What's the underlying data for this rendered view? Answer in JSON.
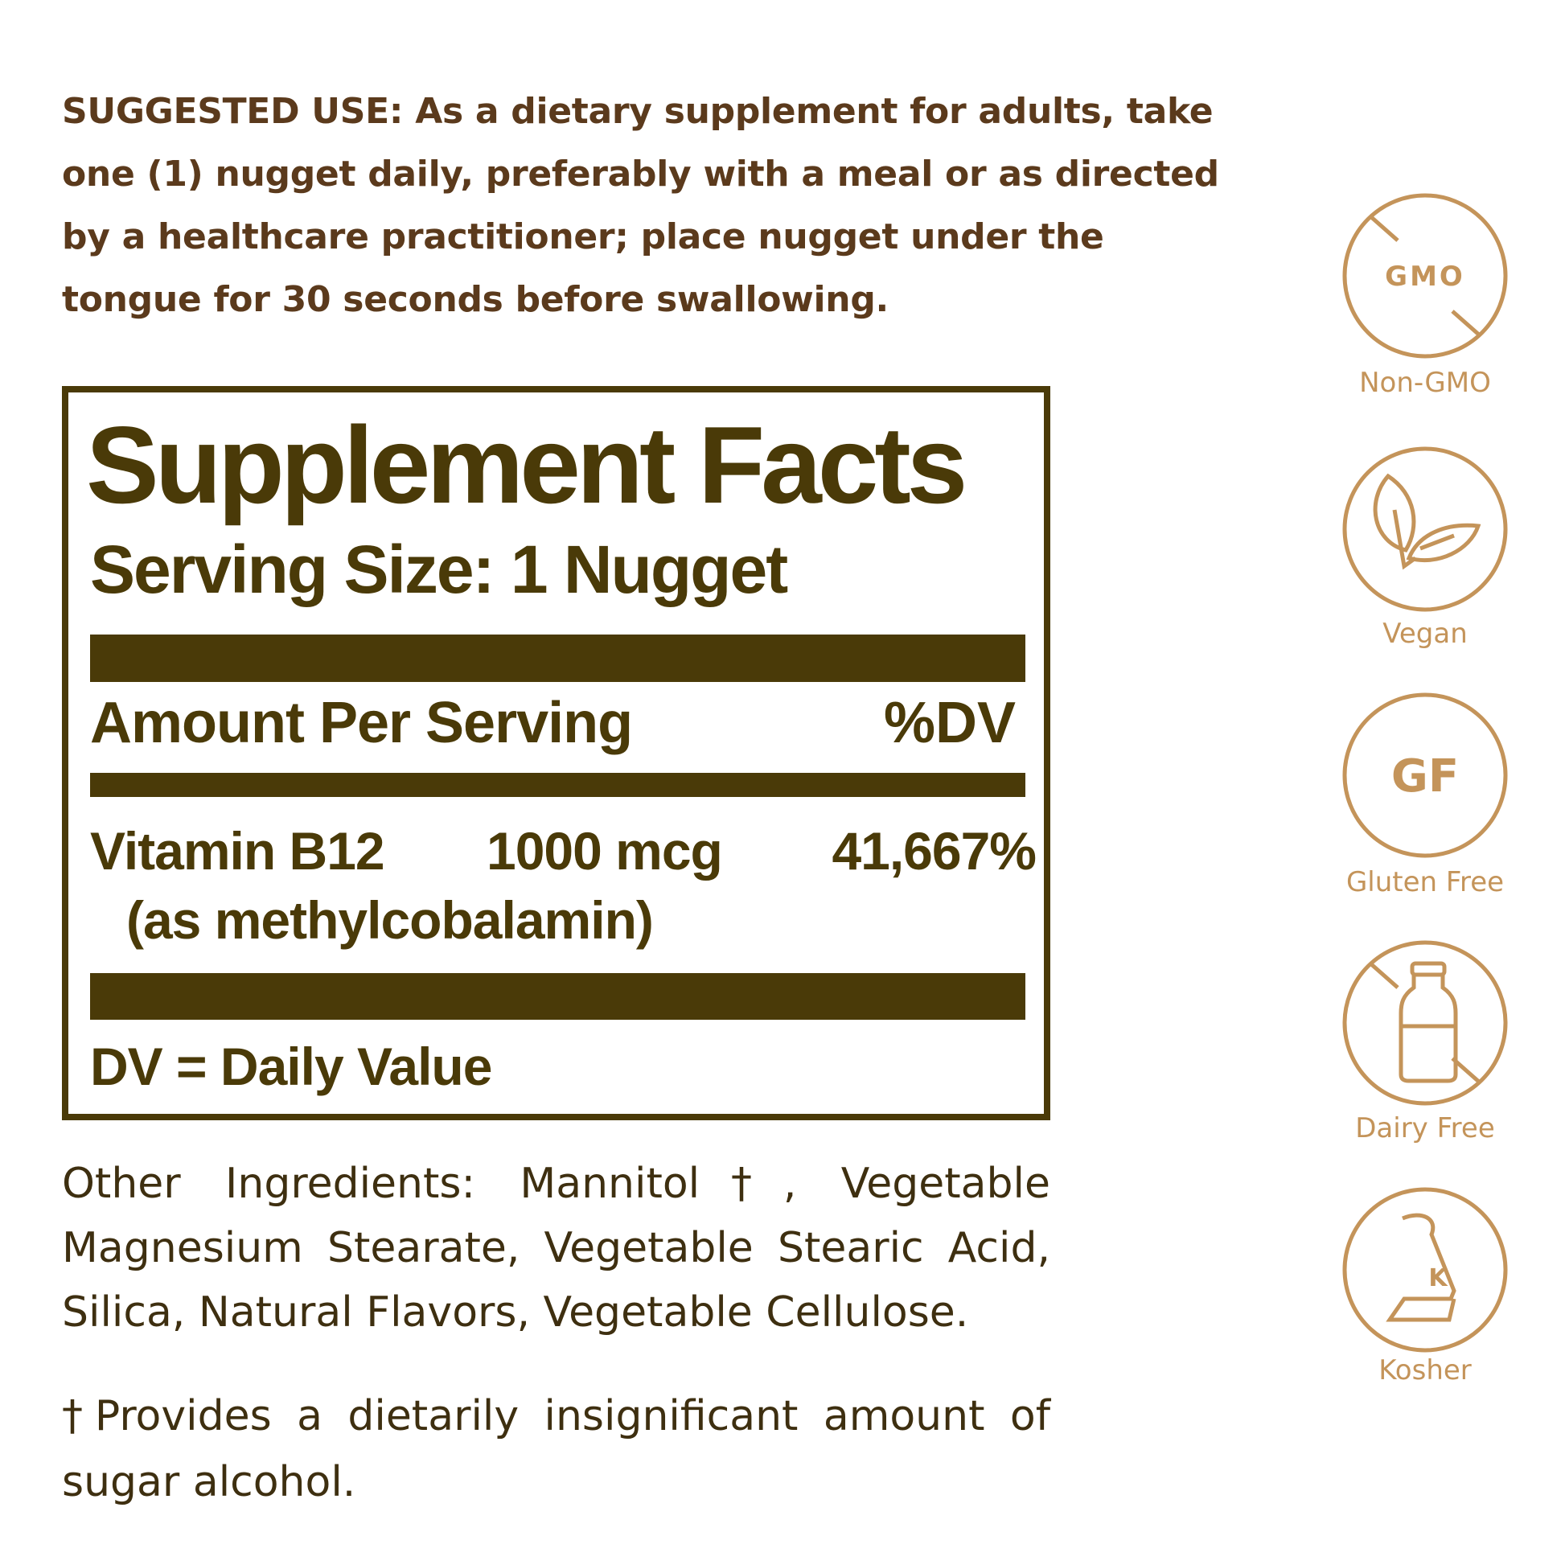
{
  "suggested_use": "SUGGESTED USE: As a dietary supplement for adults, take one (1) nugget daily, preferably with a meal or as directed by a healthcare practitioner; place nugget under the tongue for 30 seconds before swallowing.",
  "facts": {
    "title": "Supplement Facts",
    "serving_size": "Serving Size: 1 Nugget",
    "amount_header": "Amount Per Serving",
    "dv_header": "%DV",
    "rows": [
      {
        "name": "Vitamin B12",
        "amount": "1000 mcg",
        "dv": "41,667%",
        "form": "(as methylcobalamin)"
      }
    ],
    "footer": "DV = Daily Value"
  },
  "other_ingredients": "Other Ingredients: Mannitol†, Vegetable Magnesium Stearate, Vegetable Stearic Acid, Silica, Natural Flavors, Vegetable Cellulose.",
  "footnote": "†Provides a dietarily insignificant amount of sugar alcohol.",
  "badges": [
    {
      "icon": "non-gmo-icon",
      "icon_text": "GMO",
      "label": "Non-GMO"
    },
    {
      "icon": "vegan-leaf-icon",
      "label": "Vegan"
    },
    {
      "icon": "gluten-free-icon",
      "icon_text": "GF",
      "label": "Gluten Free"
    },
    {
      "icon": "dairy-free-bottle-icon",
      "label": "Dairy Free"
    },
    {
      "icon": "kosher-icon",
      "icon_text": "K",
      "label": "Kosher"
    }
  ],
  "colors": {
    "text_brown": "#5b3a1c",
    "label_dark": "#4a3a08",
    "badge_gold": "#c4945a"
  }
}
